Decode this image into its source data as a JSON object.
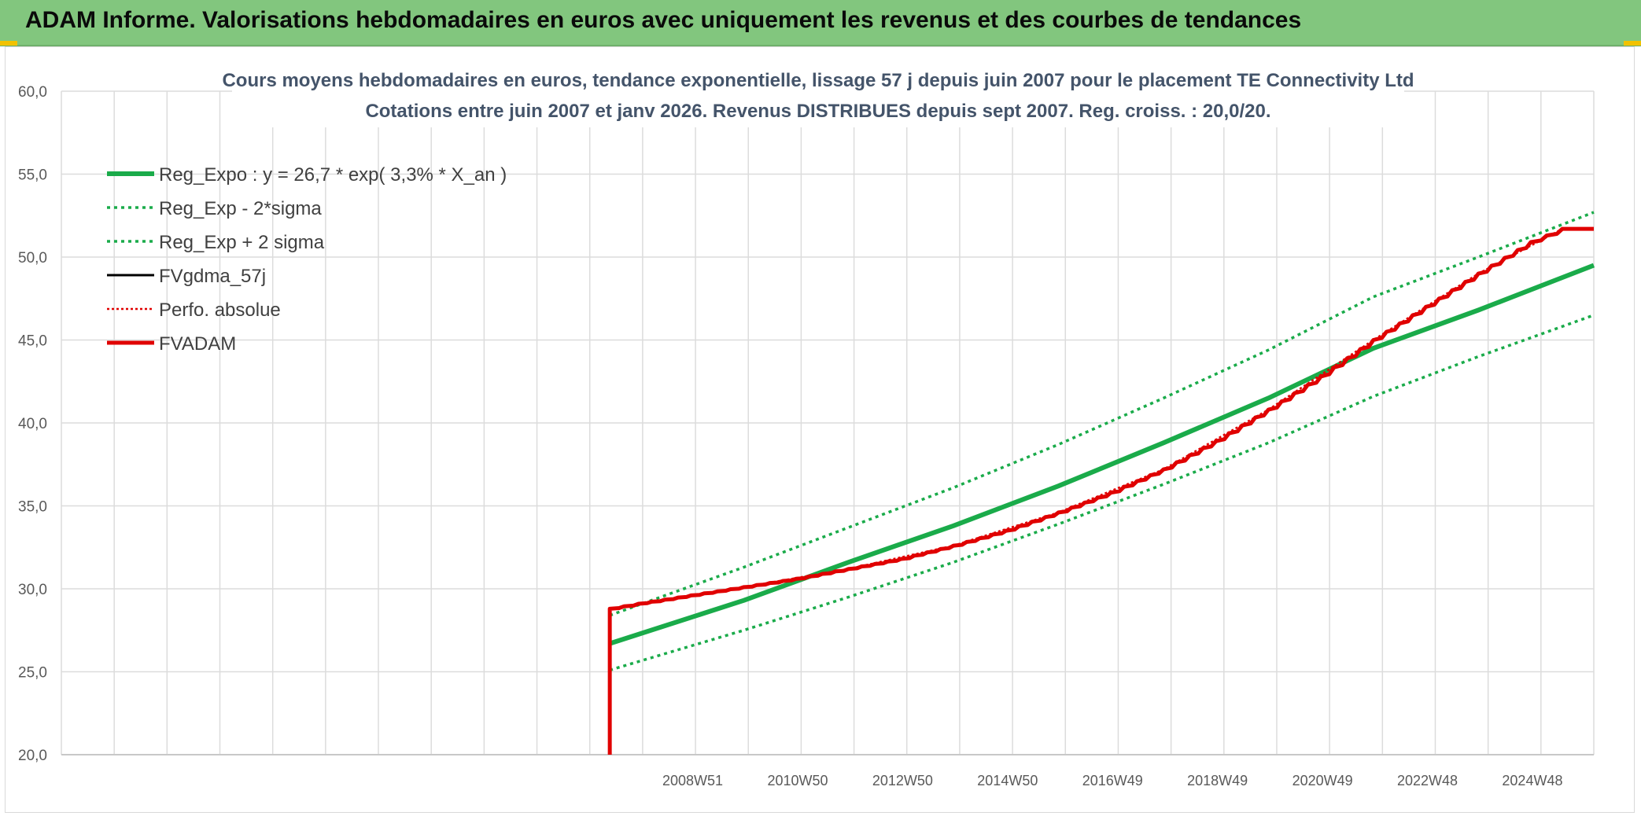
{
  "banner": {
    "title": "ADAM Informe. Valorisations hebdomadaires en euros avec uniquement les revenus et des courbes de tendances"
  },
  "chart_data": {
    "type": "line",
    "title": "Cours moyens hebdomadaires en euros, tendance exponentielle, lissage 57 j depuis juin 2007 pour le placement TE Connectivity Ltd",
    "subtitle": "Cotations entre juin 2007 et janv 2026. Revenus DISTRIBUES depuis sept 2007. Reg. croiss. : 20,0/20.",
    "xlabel": "",
    "ylabel": "",
    "ylim": [
      20,
      60
    ],
    "yticks": [
      "20,0",
      "25,0",
      "30,0",
      "35,0",
      "40,0",
      "45,0",
      "50,0",
      "55,0",
      "60,0"
    ],
    "xticks": [
      "2008W51",
      "2010W50",
      "2012W50",
      "2014W50",
      "2016W49",
      "2018W49",
      "2020W49",
      "2022W48",
      "2024W48"
    ],
    "x_start_year": 1997.0,
    "x_end_year": 2026.2,
    "data_start_year": 2007.45,
    "grid": true,
    "legend_position": "top-left",
    "series": [
      {
        "name": "Reg_Expo : y = 26,7 * exp( 3,3% *  X_an )",
        "color": "#1aab4a",
        "style": "solid-thick",
        "x": [
          2007.45,
          2010,
          2012,
          2014,
          2016,
          2018,
          2020,
          2022,
          2024,
          2026.2
        ],
        "y": [
          26.7,
          29.3,
          31.6,
          33.8,
          36.2,
          38.8,
          41.5,
          44.5,
          46.8,
          49.5
        ]
      },
      {
        "name": "Reg_Exp - 2*sigma",
        "color": "#1aab4a",
        "style": "dotted",
        "x": [
          2007.45,
          2010,
          2012,
          2014,
          2016,
          2018,
          2020,
          2022,
          2024,
          2026.2
        ],
        "y": [
          25.1,
          27.5,
          29.5,
          31.6,
          33.9,
          36.3,
          38.8,
          41.6,
          44.0,
          46.5
        ]
      },
      {
        "name": "Reg_Exp + 2 sigma",
        "color": "#1aab4a",
        "style": "dotted",
        "x": [
          2007.45,
          2010,
          2012,
          2014,
          2016,
          2018,
          2020,
          2022,
          2024,
          2026.2
        ],
        "y": [
          28.4,
          31.3,
          33.7,
          36.1,
          38.7,
          41.5,
          44.4,
          47.6,
          50.0,
          52.7
        ]
      },
      {
        "name": "FVgdma_57j",
        "color": "#000000",
        "style": "solid",
        "x": [],
        "y": []
      },
      {
        "name": "Perfo. absolue",
        "color": "#e00000",
        "style": "dotted",
        "x": [
          2007.45,
          2010,
          2012,
          2014,
          2016,
          2018,
          2020,
          2022,
          2024,
          2025.6,
          2026.2
        ],
        "y": [
          28.8,
          30.1,
          31.2,
          32.6,
          34.6,
          37.2,
          40.8,
          45.0,
          49.0,
          51.7,
          51.7
        ]
      },
      {
        "name": "FVADAM",
        "color": "#e00000",
        "style": "solid-thick",
        "x": [
          2007.45,
          2007.45,
          2008,
          2009,
          2010,
          2011,
          2012,
          2013,
          2014,
          2015,
          2016,
          2017,
          2018,
          2019,
          2020,
          2021,
          2022,
          2023,
          2024,
          2025,
          2025.6,
          2026.2
        ],
        "y": [
          20.0,
          28.8,
          29.1,
          29.6,
          30.1,
          30.6,
          31.2,
          31.8,
          32.6,
          33.5,
          34.6,
          35.8,
          37.2,
          38.9,
          40.8,
          42.8,
          45.0,
          47.0,
          49.0,
          50.9,
          51.7,
          51.7
        ]
      }
    ]
  }
}
